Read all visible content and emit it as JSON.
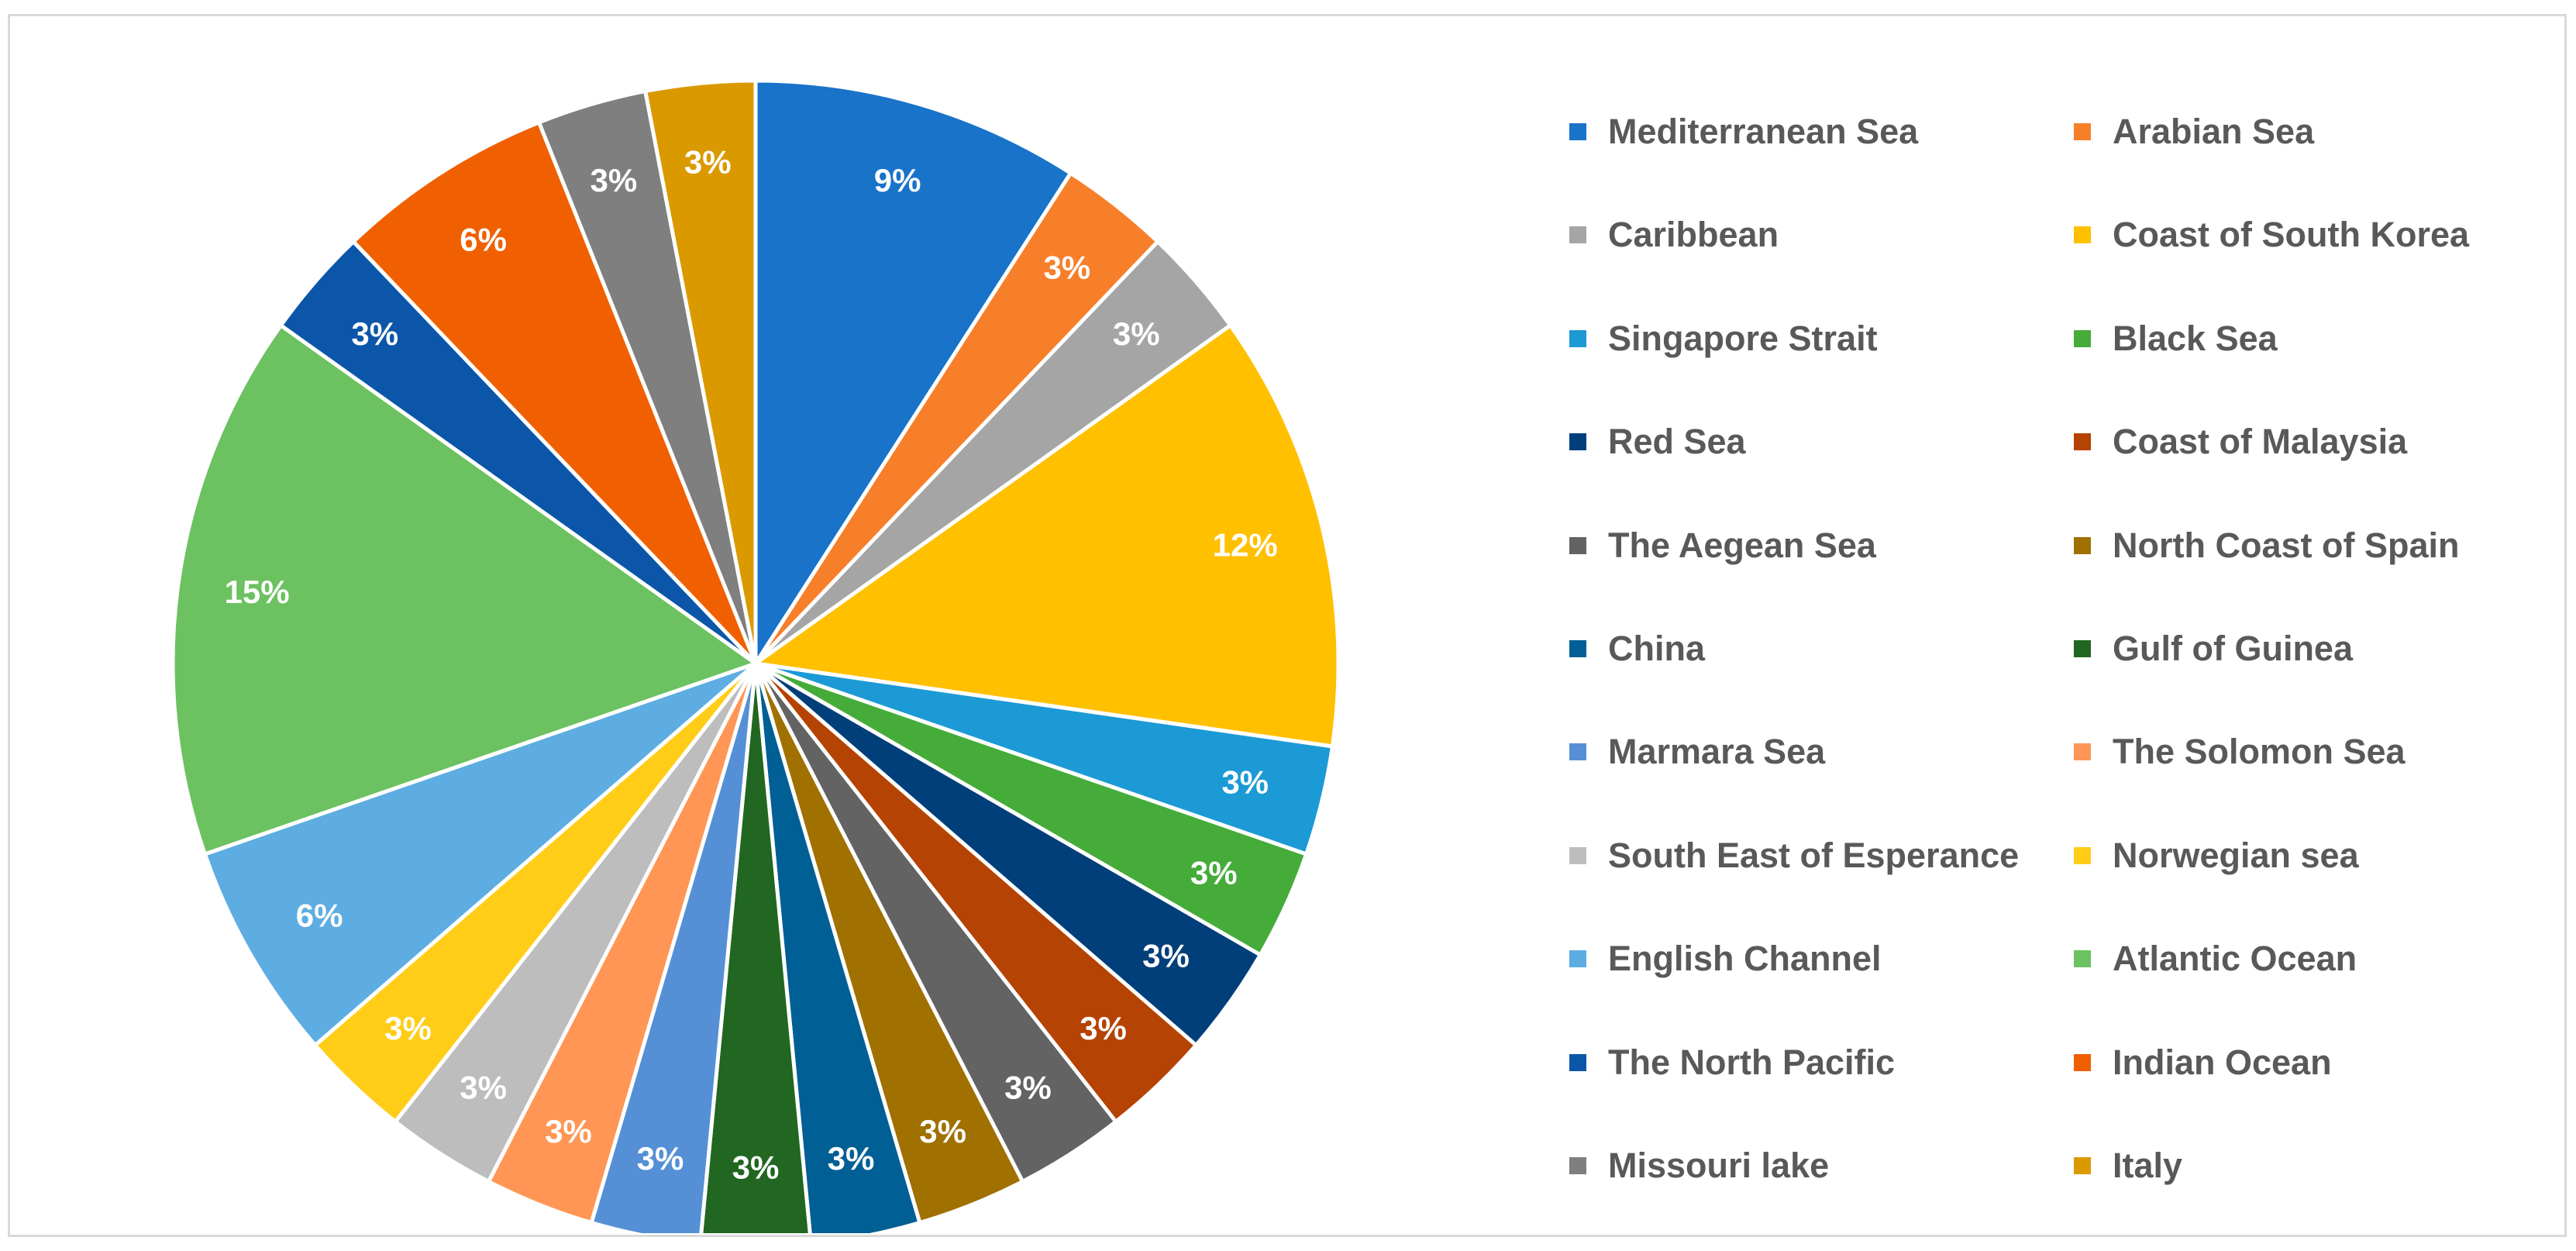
{
  "chart_data": {
    "type": "pie",
    "title": "",
    "start_angle_deg": 0,
    "direction": "clockwise",
    "legend_position": "right",
    "slices": [
      {
        "label": "Mediterranean Sea",
        "value": 9,
        "display": "9%",
        "color": "#1873C9"
      },
      {
        "label": "Arabian Sea",
        "value": 3,
        "display": "3%",
        "color": "#F77F2A"
      },
      {
        "label": "Caribbean",
        "value": 3,
        "display": "3%",
        "color": "#A5A5A5"
      },
      {
        "label": "Coast of South Korea",
        "value": 12,
        "display": "12%",
        "color": "#FFC000"
      },
      {
        "label": "Singapore Strait",
        "value": 3,
        "display": "3%",
        "color": "#1C9AD6"
      },
      {
        "label": "Black Sea",
        "value": 3,
        "display": "3%",
        "color": "#45AC3A"
      },
      {
        "label": "Red Sea",
        "value": 3,
        "display": "3%",
        "color": "#003F7A"
      },
      {
        "label": "Coast of Malaysia",
        "value": 3,
        "display": "3%",
        "color": "#B54303"
      },
      {
        "label": "The Aegean Sea",
        "value": 3,
        "display": "3%",
        "color": "#636363"
      },
      {
        "label": "North Coast of Spain",
        "value": 3,
        "display": "3%",
        "color": "#A07000"
      },
      {
        "label": "China",
        "value": 3,
        "display": "3%",
        "color": "#005F94"
      },
      {
        "label": "Gulf of Guinea",
        "value": 3,
        "display": "3%",
        "color": "#216621"
      },
      {
        "label": "Marmara Sea",
        "value": 3,
        "display": "3%",
        "color": "#5590D6"
      },
      {
        "label": "The Solomon Sea",
        "value": 3,
        "display": "3%",
        "color": "#FF9655"
      },
      {
        "label": "South East of Esperance",
        "value": 3,
        "display": "3%",
        "color": "#BDBDBD"
      },
      {
        "label": "Norwegian sea",
        "value": 3,
        "display": "3%",
        "color": "#FFCD17"
      },
      {
        "label": "English Channel",
        "value": 6,
        "display": "6%",
        "color": "#5DADE2"
      },
      {
        "label": "Atlantic Ocean",
        "value": 15,
        "display": "15%",
        "color": "#6CC160"
      },
      {
        "label": "The North Pacific",
        "value": 3,
        "display": "3%",
        "color": "#0B56A8"
      },
      {
        "label": "Indian Ocean",
        "value": 6,
        "display": "6%",
        "color": "#F06000"
      },
      {
        "label": "Missouri lake",
        "value": 3,
        "display": "3%",
        "color": "#7F7F7F"
      },
      {
        "label": "Italy",
        "value": 3,
        "display": "3%",
        "color": "#DB9900"
      }
    ]
  }
}
